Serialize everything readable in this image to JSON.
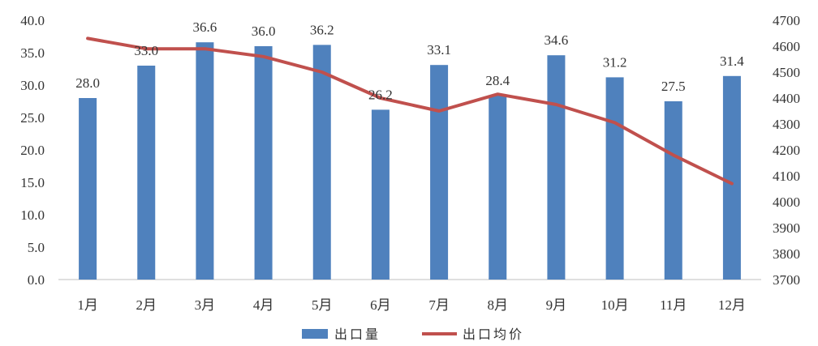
{
  "chart_data": {
    "type": "bar",
    "categories": [
      "1月",
      "2月",
      "3月",
      "4月",
      "5月",
      "6月",
      "7月",
      "8月",
      "9月",
      "10月",
      "11月",
      "12月"
    ],
    "series": [
      {
        "name": "出口量",
        "type": "bar",
        "axis": "left",
        "color": "#4f81bd",
        "values": [
          28.0,
          33.0,
          36.6,
          36.0,
          36.2,
          26.2,
          33.1,
          28.4,
          34.6,
          31.2,
          27.5,
          31.4
        ],
        "data_labels": [
          "28.0",
          "33.0",
          "36.6",
          "36.0",
          "36.2",
          "26.2",
          "33.1",
          "28.4",
          "34.6",
          "31.2",
          "27.5",
          "31.4"
        ]
      },
      {
        "name": "出口均价",
        "type": "line",
        "axis": "right",
        "color": "#c0504d",
        "values": [
          4630,
          4590,
          4590,
          4560,
          4500,
          4400,
          4350,
          4415,
          4375,
          4305,
          4180,
          4070
        ]
      }
    ],
    "y_left": {
      "range": [
        0,
        40
      ],
      "ticks": [
        "0.0",
        "5.0",
        "10.0",
        "15.0",
        "20.0",
        "25.0",
        "30.0",
        "35.0",
        "40.0"
      ]
    },
    "y_right": {
      "range": [
        3700,
        4700
      ],
      "ticks": [
        "3700",
        "3800",
        "3900",
        "4000",
        "4100",
        "4200",
        "4300",
        "4400",
        "4500",
        "4600",
        "4700"
      ]
    },
    "title": "",
    "xlabel": "",
    "ylabel": "",
    "grid": false,
    "legend_position": "bottom-center"
  }
}
